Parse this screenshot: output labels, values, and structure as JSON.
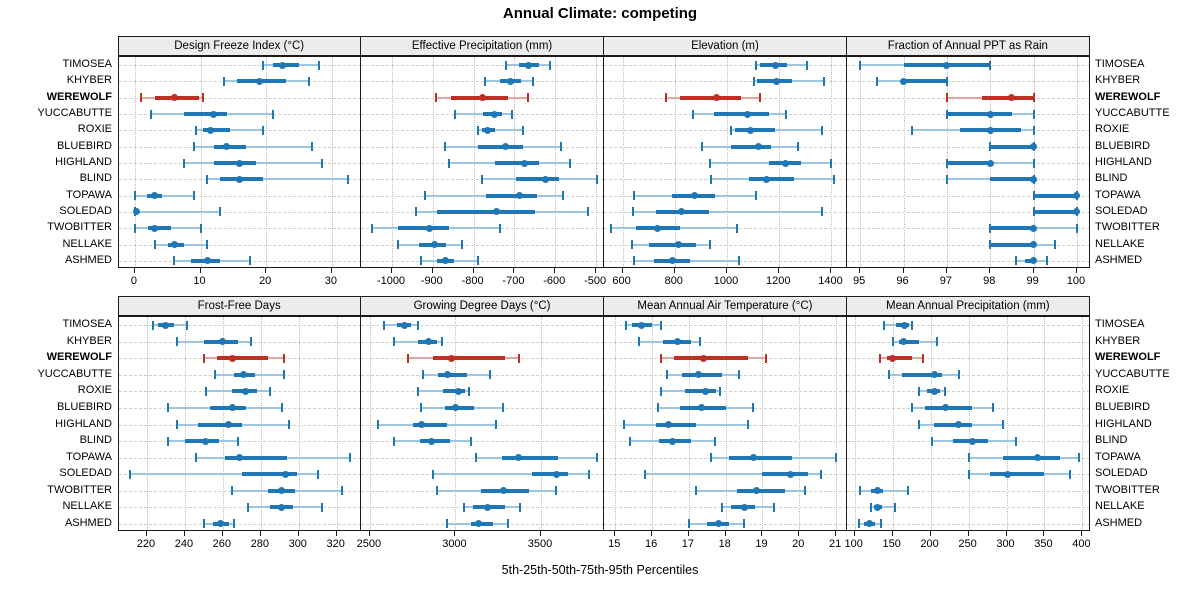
{
  "title": "Annual Climate: competing",
  "xlabel": "5th-25th-50th-75th-95th Percentiles",
  "sites": [
    "TIMOSEA",
    "KHYBER",
    "WEREWOLF",
    "YUCCABUTTE",
    "ROXIE",
    "BLUEBIRD",
    "HIGHLAND",
    "BLIND",
    "TOPAWA",
    "SOLEDAD",
    "TWOBITTER",
    "NELLAKE",
    "ASHMED"
  ],
  "highlight_site": "WEREWOLF",
  "colors": {
    "blue": "#1f77b4",
    "blue_light": "#9cc6e2",
    "red": "#c02f26",
    "red_light": "#e2a7a2",
    "strip_bg": "#ececec",
    "panel_border": "#1a1a1a",
    "grid": "#cccccc"
  },
  "chart_data": {
    "type": "dotplot-trellis",
    "layout": "2 rows x 4 columns, shared site axis, percentile whisker dotplots",
    "percentile_labels": [
      "5th",
      "25th",
      "50th",
      "75th",
      "95th"
    ],
    "panels": [
      {
        "title": "Design Freeze Index (°C)",
        "domain": [
          -2.5,
          34.5
        ],
        "ticks": [
          0,
          10,
          20,
          30
        ],
        "values": [
          [
            19.5,
            21,
            22.5,
            25,
            28
          ],
          [
            13.5,
            15.5,
            19,
            23,
            26.5
          ],
          [
            1,
            3,
            6,
            9.7,
            10.4
          ],
          [
            2.5,
            7.5,
            12,
            14,
            21
          ],
          [
            9.3,
            10.3,
            11.5,
            14.5,
            19.5
          ],
          [
            9,
            12,
            14,
            17,
            27
          ],
          [
            7.5,
            12,
            16,
            18.5,
            28.5
          ],
          [
            11,
            13,
            16,
            19.5,
            32.5
          ],
          [
            0,
            1.8,
            3,
            4.2,
            9
          ],
          [
            0,
            0,
            0.2,
            0.6,
            13
          ],
          [
            0,
            2,
            3,
            5.5,
            10
          ],
          [
            3,
            5,
            6,
            7.5,
            11
          ],
          [
            6,
            8.5,
            11,
            13,
            17.5
          ]
        ]
      },
      {
        "title": "Effective Precipitation (mm)",
        "domain": [
          -1075,
          -480
        ],
        "ticks": [
          -1000,
          -900,
          -800,
          -700,
          -600,
          -500
        ],
        "values": [
          [
            -720,
            -690,
            -665,
            -640,
            -612
          ],
          [
            -772,
            -735,
            -710,
            -685,
            -655
          ],
          [
            -893,
            -855,
            -778,
            -715,
            -668
          ],
          [
            -845,
            -778,
            -750,
            -730,
            -705
          ],
          [
            -790,
            -780,
            -765,
            -748,
            -680
          ],
          [
            -870,
            -790,
            -722,
            -680,
            -585
          ],
          [
            -860,
            -748,
            -675,
            -640,
            -565
          ],
          [
            -780,
            -695,
            -625,
            -590,
            -497
          ],
          [
            -920,
            -770,
            -688,
            -645,
            -580
          ],
          [
            -940,
            -890,
            -745,
            -650,
            -520
          ],
          [
            -1050,
            -985,
            -908,
            -860,
            -735
          ],
          [
            -985,
            -935,
            -895,
            -868,
            -828
          ],
          [
            -930,
            -890,
            -868,
            -848,
            -790
          ]
        ]
      },
      {
        "title": "Elevation (m)",
        "domain": [
          530,
          1460
        ],
        "ticks": [
          600,
          800,
          1000,
          1200,
          1400
        ],
        "values": [
          [
            1110,
            1125,
            1185,
            1230,
            1305
          ],
          [
            1105,
            1115,
            1190,
            1250,
            1370
          ],
          [
            765,
            820,
            960,
            1055,
            1125
          ],
          [
            870,
            950,
            1080,
            1160,
            1225
          ],
          [
            1015,
            1030,
            1090,
            1185,
            1365
          ],
          [
            905,
            1015,
            1120,
            1170,
            1270
          ],
          [
            935,
            1160,
            1225,
            1285,
            1400
          ],
          [
            940,
            1085,
            1150,
            1255,
            1410
          ],
          [
            645,
            790,
            875,
            955,
            1110
          ],
          [
            640,
            730,
            825,
            930,
            1365
          ],
          [
            555,
            650,
            735,
            820,
            1040
          ],
          [
            635,
            700,
            815,
            880,
            935
          ],
          [
            645,
            720,
            790,
            860,
            1045
          ]
        ]
      },
      {
        "title": "Fraction of Annual PPT as Rain",
        "domain": [
          94.7,
          100.3
        ],
        "ticks": [
          95,
          96,
          97,
          98,
          99,
          100
        ],
        "values": [
          [
            95,
            96,
            97,
            98,
            98
          ],
          [
            95.4,
            96,
            96,
            97,
            97
          ],
          [
            97,
            97.8,
            98.5,
            99,
            99
          ],
          [
            97,
            97,
            98,
            98.5,
            99
          ],
          [
            96.2,
            97.3,
            98,
            98.7,
            99
          ],
          [
            98,
            98,
            99,
            99,
            99
          ],
          [
            97,
            97,
            98,
            98,
            99
          ],
          [
            97,
            98,
            99,
            99,
            99
          ],
          [
            99,
            99,
            100,
            100,
            100
          ],
          [
            99,
            99,
            100,
            100,
            100
          ],
          [
            98,
            98,
            99,
            99,
            100
          ],
          [
            98,
            98,
            99,
            99,
            99.5
          ],
          [
            98.6,
            98.8,
            99,
            99,
            99.3
          ]
        ]
      },
      {
        "title": "Frost-Free Days",
        "domain": [
          205,
          333
        ],
        "ticks": [
          220,
          240,
          260,
          280,
          300,
          320
        ],
        "values": [
          [
            223,
            226,
            230,
            234,
            241
          ],
          [
            236,
            250,
            260,
            268,
            275
          ],
          [
            250,
            257,
            265,
            284,
            292
          ],
          [
            256,
            266,
            271,
            277,
            292
          ],
          [
            251,
            265,
            272,
            278,
            285
          ],
          [
            231,
            253,
            265,
            272,
            291
          ],
          [
            236,
            247,
            263,
            270,
            295
          ],
          [
            231,
            240,
            251,
            258,
            268
          ],
          [
            246,
            261,
            269,
            294,
            327
          ],
          [
            211,
            270,
            293,
            299,
            310
          ],
          [
            265,
            284,
            291,
            298,
            323
          ],
          [
            273,
            285,
            291,
            297,
            312
          ],
          [
            250,
            255,
            259,
            263,
            266
          ]
        ]
      },
      {
        "title": "Growing Degree Days (°C)",
        "domain": [
          2450,
          3870
        ],
        "ticks": [
          2500,
          3000,
          3500
        ],
        "values": [
          [
            2580,
            2660,
            2700,
            2740,
            2780
          ],
          [
            2640,
            2780,
            2845,
            2890,
            2920
          ],
          [
            2720,
            2870,
            2975,
            3290,
            3370
          ],
          [
            2810,
            2900,
            2955,
            3070,
            3200
          ],
          [
            2780,
            2930,
            3015,
            3055,
            3080
          ],
          [
            2800,
            2940,
            3000,
            3110,
            3280
          ],
          [
            2550,
            2750,
            2800,
            2950,
            3240
          ],
          [
            2640,
            2790,
            2860,
            2970,
            3090
          ],
          [
            3120,
            3270,
            3370,
            3600,
            3830
          ],
          [
            2870,
            3450,
            3590,
            3660,
            3780
          ],
          [
            2890,
            3150,
            3280,
            3430,
            3590
          ],
          [
            3050,
            3100,
            3185,
            3290,
            3380
          ],
          [
            2950,
            3090,
            3135,
            3220,
            3310
          ]
        ]
      },
      {
        "title": "Mean Annual Air Temperature (°C)",
        "domain": [
          14.7,
          21.3
        ],
        "ticks": [
          15,
          16,
          17,
          18,
          19,
          20,
          21
        ],
        "values": [
          [
            15.3,
            15.45,
            15.7,
            16.0,
            16.25
          ],
          [
            15.65,
            16.3,
            16.7,
            17.05,
            17.3
          ],
          [
            16.25,
            16.6,
            17.4,
            18.6,
            19.1
          ],
          [
            16.4,
            16.8,
            17.25,
            17.9,
            18.35
          ],
          [
            16.25,
            16.9,
            17.45,
            17.75,
            17.85
          ],
          [
            16.15,
            16.75,
            17.35,
            18.0,
            18.75
          ],
          [
            15.25,
            16.1,
            16.45,
            17.2,
            18.6
          ],
          [
            15.4,
            16.2,
            16.55,
            17.05,
            17.7
          ],
          [
            17.6,
            18.1,
            18.75,
            19.8,
            21.0
          ],
          [
            15.8,
            19.0,
            19.75,
            20.25,
            20.6
          ],
          [
            17.2,
            18.3,
            18.85,
            19.6,
            20.15
          ],
          [
            17.9,
            18.15,
            18.5,
            18.8,
            19.3
          ],
          [
            17.0,
            17.5,
            17.8,
            18.1,
            18.5
          ]
        ]
      },
      {
        "title": "Mean Annual Precipitation (mm)",
        "domain": [
          90,
          410
        ],
        "ticks": [
          100,
          150,
          200,
          250,
          300,
          350,
          400
        ],
        "values": [
          [
            138,
            155,
            165,
            172,
            176
          ],
          [
            150,
            158,
            164,
            185,
            208
          ],
          [
            133,
            143,
            150,
            175,
            190
          ],
          [
            145,
            162,
            205,
            215,
            237
          ],
          [
            185,
            195,
            205,
            213,
            219
          ],
          [
            176,
            193,
            219,
            255,
            282
          ],
          [
            185,
            205,
            237,
            255,
            296
          ],
          [
            202,
            230,
            255,
            275,
            313
          ],
          [
            251,
            295,
            341,
            370,
            395
          ],
          [
            251,
            278,
            301,
            350,
            383
          ],
          [
            107,
            122,
            130,
            137,
            170
          ],
          [
            121,
            125,
            130,
            136,
            153
          ],
          [
            105,
            112,
            120,
            127,
            135
          ]
        ]
      }
    ]
  }
}
